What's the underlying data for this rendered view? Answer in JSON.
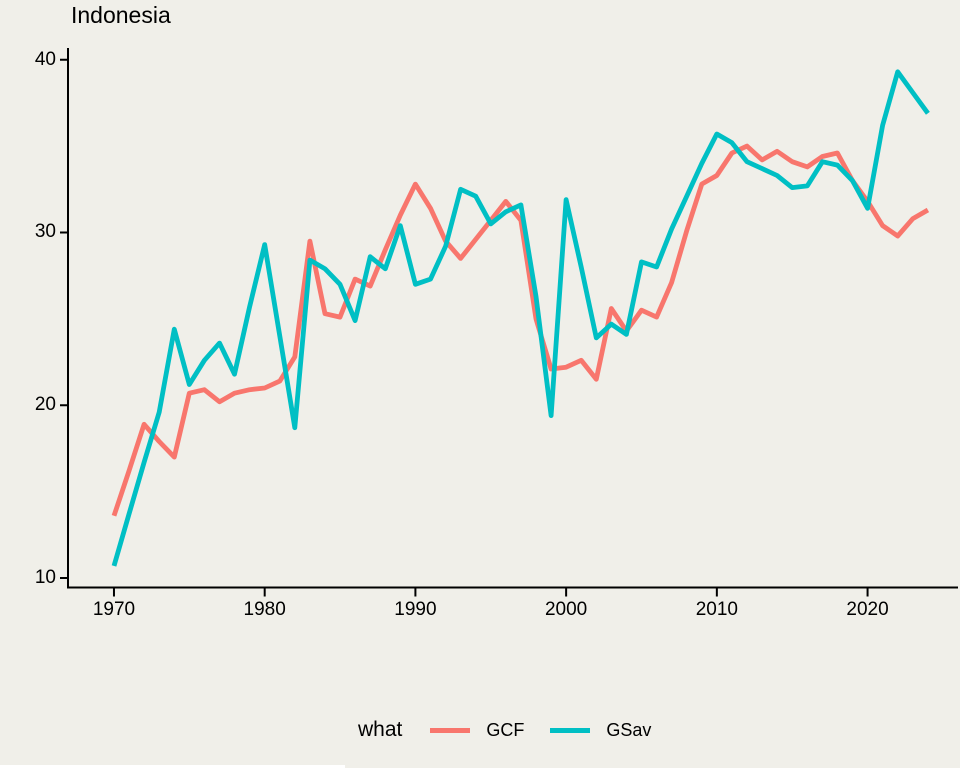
{
  "title": "Indonesia",
  "legend": {
    "title": "what",
    "items": [
      {
        "label": "GCF",
        "color": "#F8766D"
      },
      {
        "label": "GSav",
        "color": "#00BFC4"
      }
    ]
  },
  "colors": {
    "background": "#F0EFE9",
    "axis": "#000000",
    "text": "#000000"
  },
  "chart_data": {
    "type": "line",
    "title": "Indonesia",
    "xlabel": "",
    "ylabel": "",
    "legend_title": "what",
    "legend_position": "bottom",
    "grid": false,
    "xlim": [
      1966.95,
      2026.0
    ],
    "ylim": [
      9.45,
      40.68
    ],
    "x_ticks": [
      1970,
      1980,
      1990,
      2000,
      2010,
      2020
    ],
    "y_ticks": [
      10,
      20,
      30,
      40
    ],
    "x": [
      1970,
      1971,
      1972,
      1973,
      1974,
      1975,
      1976,
      1977,
      1978,
      1979,
      1980,
      1981,
      1982,
      1983,
      1984,
      1985,
      1986,
      1987,
      1988,
      1989,
      1990,
      1991,
      1992,
      1993,
      1994,
      1995,
      1996,
      1997,
      1998,
      1999,
      2000,
      2001,
      2002,
      2003,
      2004,
      2005,
      2006,
      2007,
      2008,
      2009,
      2010,
      2011,
      2012,
      2013,
      2014,
      2015,
      2016,
      2017,
      2018,
      2019,
      2020,
      2021,
      2022,
      2023,
      2024
    ],
    "series": [
      {
        "name": "GCF",
        "color": "#F8766D",
        "values": [
          13.6,
          16.2,
          18.9,
          17.9,
          17.0,
          20.7,
          20.9,
          20.2,
          20.7,
          20.9,
          21.0,
          21.4,
          22.8,
          29.5,
          25.3,
          25.1,
          27.3,
          26.9,
          29.0,
          31.0,
          32.8,
          31.4,
          29.5,
          28.5,
          29.6,
          30.7,
          31.8,
          30.7,
          25.0,
          22.1,
          22.2,
          22.6,
          21.5,
          25.6,
          24.3,
          25.5,
          25.1,
          27.1,
          30.1,
          32.8,
          33.3,
          34.6,
          35.0,
          34.2,
          34.7,
          34.1,
          33.8,
          34.4,
          34.6,
          33.0,
          31.8,
          30.4,
          29.8,
          30.8,
          31.3
        ]
      },
      {
        "name": "GSav",
        "color": "#00BFC4",
        "values": [
          10.7,
          13.7,
          16.7,
          19.6,
          24.4,
          21.2,
          22.6,
          23.6,
          21.8,
          25.7,
          29.3,
          24.0,
          18.7,
          28.4,
          27.9,
          27.0,
          24.9,
          28.6,
          27.9,
          30.4,
          27.0,
          27.3,
          29.2,
          32.5,
          32.1,
          30.5,
          31.2,
          31.6,
          26.3,
          19.4,
          31.9,
          28.0,
          23.9,
          24.7,
          24.1,
          28.3,
          28.0,
          30.2,
          32.1,
          34.0,
          35.7,
          35.2,
          34.1,
          33.7,
          33.3,
          32.6,
          32.7,
          34.1,
          33.9,
          33.0,
          31.4,
          36.2,
          39.3,
          38.1,
          36.9
        ]
      }
    ]
  }
}
